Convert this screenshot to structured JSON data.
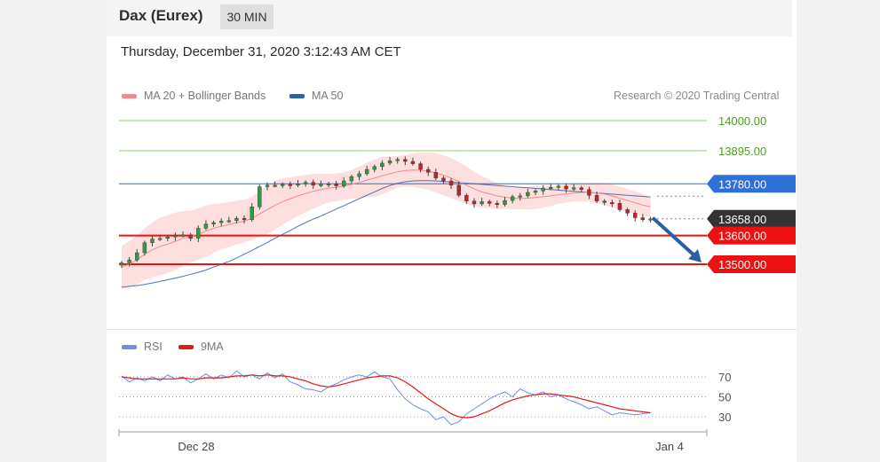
{
  "header": {
    "instrument": "Dax (Eurex)",
    "interval": "30 MIN"
  },
  "datetime": "Thursday, December 31, 2020 3:12:43 AM CET",
  "credit": "Research © 2020 Trading Central",
  "colors": {
    "ma20": "#f08a8a",
    "ma50": "#2f5ea8",
    "bands": "#fcd7d7",
    "target_line": "#8fcf6a",
    "target_text": "#4a9e1d",
    "pivot": "#2f6fd8",
    "support": "#ee1111",
    "last": "#333333",
    "rsi": "#6e8fe6",
    "rsi_ma": "#e31a1a",
    "up_candle": "#2f9d3a",
    "down_candle": "#c02424",
    "arrow": "#2c5fa0"
  },
  "chart_data": [
    {
      "type": "line",
      "subtype": "candlestick",
      "legend": [
        {
          "label": "MA 20 + Bollinger Bands",
          "color": "#f08a8a"
        },
        {
          "label": "MA 50",
          "color": "#2f5ea8"
        }
      ],
      "x_labels": [
        "Dec 28",
        "Jan 4"
      ],
      "levels": [
        {
          "value": 14000,
          "label": "14000.00",
          "role": "target"
        },
        {
          "value": 13895,
          "label": "13895.00",
          "role": "target"
        },
        {
          "value": 13780,
          "label": "13780.00",
          "role": "pivot"
        },
        {
          "value": 13658,
          "label": "13658.00",
          "role": "last"
        },
        {
          "value": 13600,
          "label": "13600.00",
          "role": "support"
        },
        {
          "value": 13500,
          "label": "13500.00",
          "role": "support"
        }
      ],
      "close": [
        13505,
        13515,
        13540,
        13575,
        13588,
        13590,
        13595,
        13600,
        13602,
        13590,
        13625,
        13640,
        13645,
        13650,
        13652,
        13660,
        13655,
        13700,
        13770,
        13775,
        13775,
        13778,
        13775,
        13780,
        13785,
        13775,
        13778,
        13780,
        13773,
        13790,
        13805,
        13815,
        13830,
        13840,
        13852,
        13860,
        13865,
        13858,
        13850,
        13830,
        13820,
        13800,
        13790,
        13775,
        13740,
        13720,
        13710,
        13718,
        13712,
        13708,
        13722,
        13735,
        13738,
        13750,
        13755,
        13765,
        13768,
        13772,
        13762,
        13766,
        13760,
        13740,
        13720,
        13715,
        13712,
        13690,
        13678,
        13662,
        13655,
        13658
      ],
      "ma20": [
        13490,
        13500,
        13515,
        13535,
        13550,
        13562,
        13570,
        13580,
        13590,
        13596,
        13605,
        13615,
        13625,
        13632,
        13638,
        13645,
        13650,
        13660,
        13675,
        13690,
        13705,
        13718,
        13728,
        13738,
        13746,
        13754,
        13760,
        13765,
        13768,
        13772,
        13778,
        13785,
        13793,
        13800,
        13808,
        13815,
        13822,
        13826,
        13828,
        13827,
        13824,
        13818,
        13810,
        13800,
        13788,
        13775,
        13762,
        13752,
        13745,
        13738,
        13733,
        13730,
        13729,
        13730,
        13732,
        13735,
        13738,
        13742,
        13745,
        13748,
        13750,
        13750,
        13748,
        13744,
        13738,
        13730,
        13722,
        13714,
        13706,
        13700
      ],
      "ma50": [
        13420,
        13423,
        13426,
        13430,
        13435,
        13440,
        13446,
        13452,
        13458,
        13465,
        13472,
        13480,
        13490,
        13500,
        13510,
        13522,
        13535,
        13548,
        13562,
        13576,
        13590,
        13604,
        13618,
        13632,
        13645,
        13657,
        13668,
        13680,
        13692,
        13704,
        13716,
        13728,
        13740,
        13752,
        13764,
        13774,
        13782,
        13787,
        13790,
        13791,
        13791,
        13790,
        13788,
        13786,
        13784,
        13782,
        13780,
        13778,
        13776,
        13774,
        13772,
        13770,
        13768,
        13766,
        13764,
        13762,
        13760,
        13758,
        13756,
        13754,
        13752,
        13750,
        13748,
        13746,
        13744,
        13742,
        13740,
        13738,
        13736,
        13734
      ],
      "band_width": [
        75,
        80,
        85,
        90,
        95,
        100,
        100,
        100,
        95,
        90,
        90,
        90,
        85,
        80,
        78,
        76,
        75,
        75,
        80,
        85,
        85,
        80,
        75,
        70,
        65,
        60,
        55,
        50,
        48,
        48,
        50,
        55,
        60,
        65,
        65,
        60,
        55,
        55,
        58,
        62,
        65,
        68,
        70,
        70,
        68,
        65,
        60,
        55,
        50,
        45,
        40,
        38,
        38,
        40,
        40,
        38,
        35,
        32,
        30,
        30,
        30,
        32,
        35,
        38,
        40,
        40,
        40,
        40,
        38,
        36
      ]
    },
    {
      "type": "line",
      "legend": [
        {
          "label": "RSI",
          "color": "#6e8fe6"
        },
        {
          "label": "9MA",
          "color": "#e31a1a"
        }
      ],
      "y_ticks": [
        70,
        50,
        30
      ],
      "rsi": [
        71,
        65,
        69,
        66,
        70,
        66,
        72,
        68,
        70,
        64,
        68,
        73,
        68,
        72,
        69,
        76,
        70,
        72,
        68,
        74,
        69,
        73,
        65,
        62,
        58,
        57,
        55,
        60,
        63,
        67,
        70,
        72,
        70,
        75,
        70,
        68,
        57,
        48,
        42,
        38,
        35,
        27,
        30,
        22,
        25,
        33,
        38,
        43,
        48,
        52,
        55,
        50,
        58,
        54,
        52,
        55,
        50,
        52,
        48,
        45,
        42,
        38,
        40,
        36,
        32,
        34,
        33,
        32,
        33,
        34
      ],
      "rsi_ma": [
        70,
        69,
        68,
        68,
        68,
        68,
        68,
        68,
        69,
        68,
        68,
        69,
        69,
        69,
        70,
        71,
        71,
        72,
        71,
        72,
        71,
        71,
        70,
        68,
        66,
        63,
        61,
        60,
        61,
        63,
        65,
        67,
        69,
        70,
        71,
        71,
        69,
        65,
        60,
        54,
        48,
        43,
        38,
        33,
        30,
        29,
        30,
        33,
        36,
        40,
        44,
        47,
        49,
        51,
        52,
        53,
        53,
        52,
        51,
        50,
        48,
        46,
        44,
        42,
        40,
        38,
        37,
        36,
        35,
        34
      ]
    }
  ]
}
